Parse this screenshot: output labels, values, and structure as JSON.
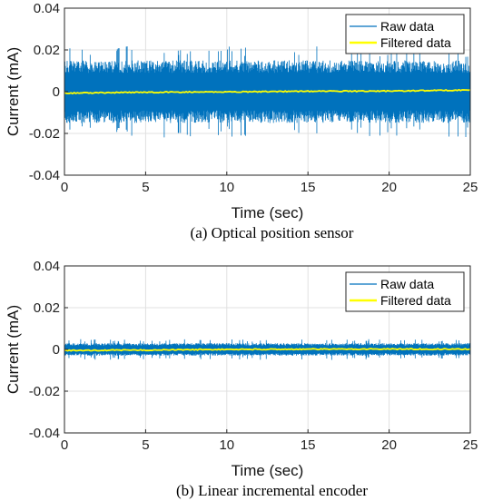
{
  "chart_data": [
    {
      "type": "line",
      "caption": "(a) Optical position sensor",
      "xlabel": "Time (sec)",
      "ylabel": "Current (mA)",
      "xlim": [
        0,
        25
      ],
      "ylim": [
        -0.04,
        0.04
      ],
      "xticks": [
        0,
        5,
        10,
        15,
        20,
        25
      ],
      "yticks": [
        0.04,
        0.02,
        0,
        -0.02,
        -0.04
      ],
      "ytick_labels": [
        "0.04",
        "0.02",
        "0",
        "-0.02",
        "-0.04"
      ],
      "grid": true,
      "legend_position": "top-right",
      "series": [
        {
          "name": "Raw data",
          "color": "#0072bd",
          "style": "noise band",
          "x": [
            0,
            5,
            10,
            15,
            20,
            25
          ],
          "upper": [
            0.015,
            0.015,
            0.015,
            0.015,
            0.015,
            0.015
          ],
          "lower": [
            -0.015,
            -0.015,
            -0.015,
            -0.015,
            -0.015,
            -0.015
          ],
          "peak_upper": 0.022,
          "peak_lower": -0.022
        },
        {
          "name": "Filtered data",
          "color": "#ffff00",
          "x": [
            0,
            5,
            10,
            15,
            20,
            25
          ],
          "y": [
            -0.0007,
            -0.0003,
            -0.0001,
            0.0002,
            0.0003,
            0.0008
          ]
        }
      ]
    },
    {
      "type": "line",
      "caption": "(b) Linear incremental encoder",
      "xlabel": "Time (sec)",
      "ylabel": "Current (mA)",
      "xlim": [
        0,
        25
      ],
      "ylim": [
        -0.04,
        0.04
      ],
      "xticks": [
        0,
        5,
        10,
        15,
        20,
        25
      ],
      "yticks": [
        0.04,
        0.02,
        0,
        -0.02,
        -0.04
      ],
      "ytick_labels": [
        "0.04",
        "0.02",
        "0",
        "-0.02",
        "-0.04"
      ],
      "grid": true,
      "legend_position": "top-right",
      "series": [
        {
          "name": "Raw data",
          "color": "#0072bd",
          "style": "noise band",
          "x": [
            0,
            5,
            10,
            15,
            20,
            25
          ],
          "upper": [
            0.003,
            0.003,
            0.003,
            0.003,
            0.003,
            0.003
          ],
          "lower": [
            -0.003,
            -0.003,
            -0.003,
            -0.003,
            -0.003,
            -0.003
          ],
          "peak_upper": 0.005,
          "peak_lower": -0.005
        },
        {
          "name": "Filtered data",
          "color": "#ffff00",
          "x": [
            0,
            5,
            10,
            15,
            20,
            25
          ],
          "y": [
            -0.0005,
            -0.0003,
            0.0,
            0.0001,
            0.0002,
            0.0001
          ]
        }
      ]
    }
  ]
}
